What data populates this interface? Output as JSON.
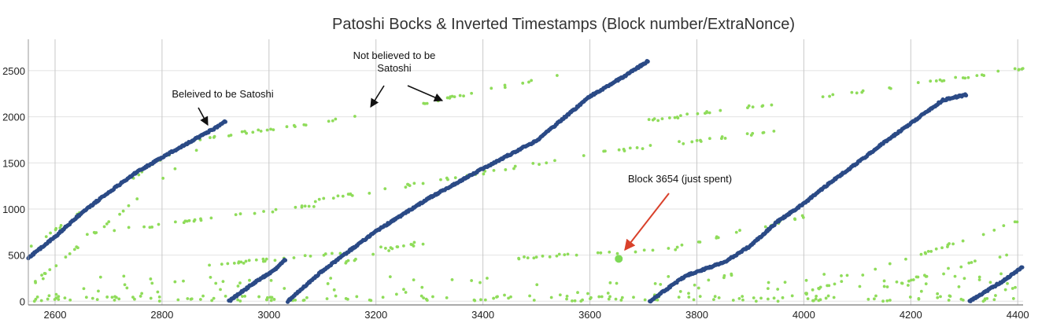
{
  "chart_data": {
    "type": "scatter",
    "title": "Patoshi Bocks & Inverted Timestamps (Block number/ExtraNonce)",
    "xlabel": "",
    "ylabel": "",
    "xlim": [
      2550,
      4410
    ],
    "ylim": [
      -40,
      2840
    ],
    "x_ticks": [
      2600,
      2800,
      3000,
      3200,
      3400,
      3600,
      3800,
      4000,
      4200,
      4400
    ],
    "y_ticks": [
      0,
      500,
      1000,
      1500,
      2000,
      2500
    ],
    "grid": "vertical",
    "colors": {
      "patoshi": "#2b4a86",
      "other": "#8fdc5a",
      "highlight": "#7ed957",
      "arrow_red": "#d9412b",
      "arrow_black": "#111111"
    },
    "series": [
      {
        "role": "patoshi",
        "segments": [
          [
            [
              2550,
              470
            ],
            [
              2600,
              700
            ],
            [
              2650,
              960
            ],
            [
              2700,
              1180
            ],
            [
              2750,
              1390
            ],
            [
              2800,
              1560
            ],
            [
              2850,
              1720
            ],
            [
              2900,
              1880
            ],
            [
              2920,
              1960
            ]
          ],
          [
            [
              2925,
              0
            ],
            [
              2970,
              190
            ],
            [
              3010,
              340
            ],
            [
              3032,
              460
            ]
          ],
          [
            [
              3035,
              0
            ],
            [
              3100,
              330
            ],
            [
              3200,
              760
            ],
            [
              3300,
              1120
            ],
            [
              3400,
              1440
            ],
            [
              3500,
              1740
            ],
            [
              3600,
              2220
            ],
            [
              3670,
              2460
            ],
            [
              3710,
              2610
            ]
          ],
          [
            [
              3712,
              0
            ],
            [
              3780,
              280
            ],
            [
              3850,
              420
            ],
            [
              3900,
              600
            ],
            [
              3950,
              860
            ],
            [
              4000,
              1060
            ],
            [
              4050,
              1290
            ],
            [
              4100,
              1500
            ],
            [
              4150,
              1720
            ],
            [
              4200,
              1930
            ],
            [
              4260,
              2180
            ],
            [
              4305,
              2240
            ]
          ],
          [
            [
              4310,
              0
            ],
            [
              4350,
              140
            ],
            [
              4380,
              250
            ],
            [
              4410,
              380
            ]
          ]
        ]
      },
      {
        "role": "other",
        "trends": [
          [
            [
              2555,
              600
            ],
            [
              2820,
              1620
            ]
          ],
          [
            [
              2560,
              200
            ],
            [
              2870,
              1650
            ]
          ],
          [
            [
              2660,
              730
            ],
            [
              3100,
              1050
            ]
          ],
          [
            [
              2870,
              1760
            ],
            [
              3210,
              2030
            ]
          ],
          [
            [
              2880,
              380
            ],
            [
              3300,
              630
            ]
          ],
          [
            [
              3100,
              350
            ],
            [
              3280,
              650
            ]
          ],
          [
            [
              3060,
              1060
            ],
            [
              3560,
              1550
            ]
          ],
          [
            [
              3280,
              2130
            ],
            [
              3540,
              2450
            ]
          ],
          [
            [
              3460,
              470
            ],
            [
              3760,
              560
            ]
          ],
          [
            [
              3580,
              1580
            ],
            [
              3950,
              1850
            ]
          ],
          [
            [
              3700,
              1950
            ],
            [
              4410,
              2520
            ]
          ],
          [
            [
              3740,
              560
            ],
            [
              4000,
              920
            ]
          ],
          [
            [
              4000,
              80
            ],
            [
              4410,
              880
            ]
          ],
          [
            [
              4150,
              160
            ],
            [
              4410,
              560
            ]
          ]
        ],
        "scatter_band": [
          [
            2560,
            0
          ],
          [
            4410,
            300
          ]
        ]
      }
    ],
    "highlight_point": {
      "x": 3654,
      "y": 460
    },
    "annotations": [
      {
        "text": "Beleived to be Satoshi"
      },
      {
        "text": "Not believed to be"
      },
      {
        "text": "Satoshi"
      },
      {
        "text": "Block 3654 (just spent)"
      }
    ]
  }
}
